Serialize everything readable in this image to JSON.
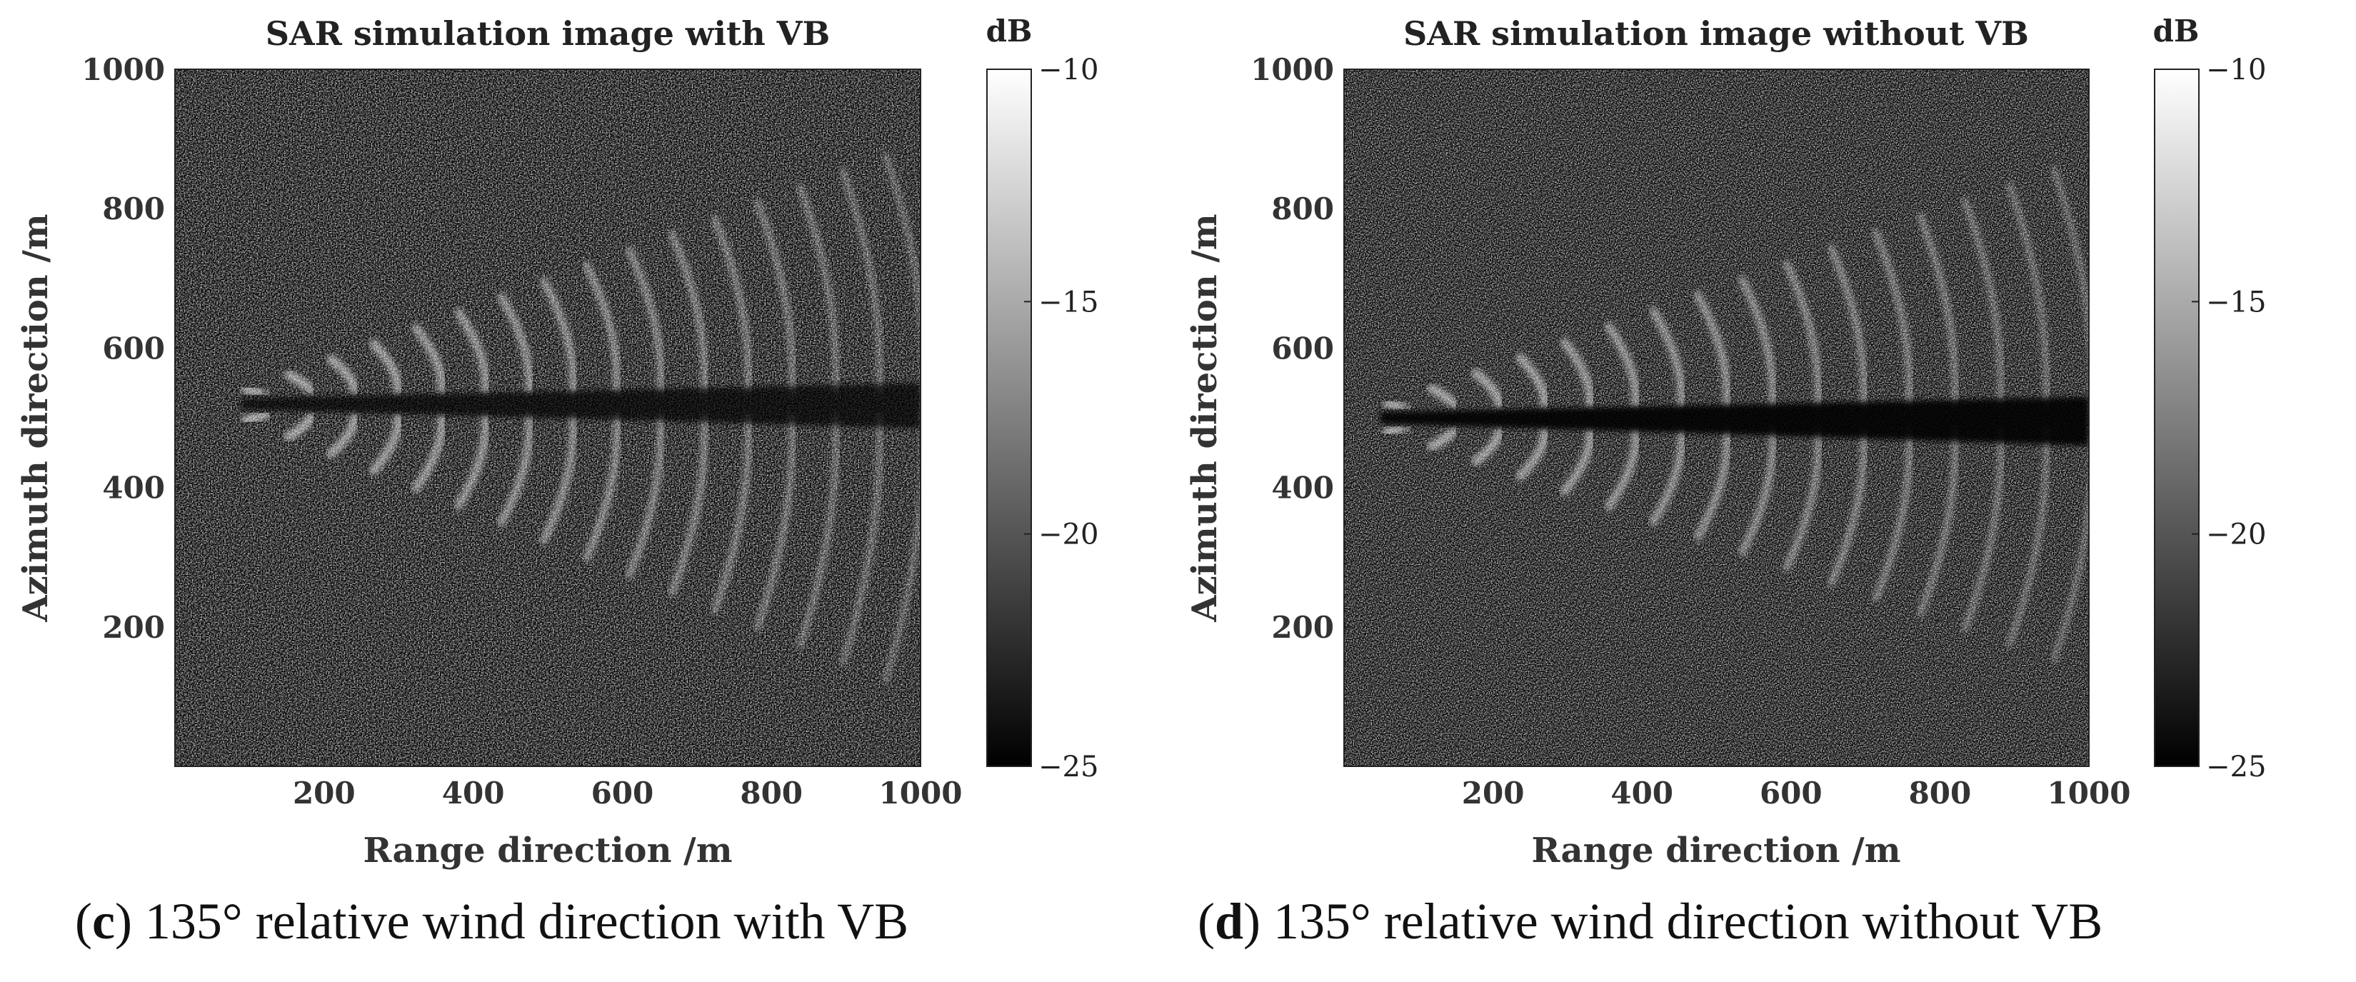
{
  "chart_data": [
    {
      "type": "heatmap",
      "panel": "c",
      "title": "SAR simulation image with VB",
      "xlabel": "Range direction /m",
      "ylabel": "Azimuth direction /m",
      "xlim": [
        0,
        1000
      ],
      "ylim": [
        0,
        1000
      ],
      "xticks": [
        200,
        400,
        600,
        800,
        1000
      ],
      "yticks": [
        200,
        400,
        600,
        800,
        1000
      ],
      "colorbar": {
        "label": "dB",
        "range": [
          -25,
          -10
        ],
        "ticks": [
          -10,
          -15,
          -20,
          -25
        ],
        "colormap": "gray"
      },
      "wake": {
        "apex_range_m": 60,
        "apex_azimuth_m": 520,
        "arm_end_azimuth_top_m": 880,
        "arm_end_azimuth_bottom_m": 120,
        "dark_trail": true,
        "trail_azimuth_band_m": [
          485,
          550
        ]
      },
      "caption": {
        "label": "c",
        "text": ") 135° relative wind direction with VB"
      }
    },
    {
      "type": "heatmap",
      "panel": "d",
      "title": "SAR simulation image without VB",
      "xlabel": "Range direction /m",
      "ylabel": "Azimuth direction /m",
      "xlim": [
        0,
        1000
      ],
      "ylim": [
        0,
        1000
      ],
      "xticks": [
        200,
        400,
        600,
        800,
        1000
      ],
      "yticks": [
        200,
        400,
        600,
        800,
        1000
      ],
      "colorbar": {
        "label": "dB",
        "range": [
          -25,
          -10
        ],
        "ticks": [
          -10,
          -15,
          -20,
          -25
        ],
        "colormap": "gray"
      },
      "wake": {
        "apex_range_m": 20,
        "apex_azimuth_m": 500,
        "arm_end_azimuth_top_m": 860,
        "arm_end_azimuth_bottom_m": 150,
        "dark_trail": true,
        "trail_azimuth_band_m": [
          460,
          530
        ]
      },
      "caption": {
        "label": "d",
        "text": ") 135° relative wind direction without VB"
      }
    }
  ]
}
